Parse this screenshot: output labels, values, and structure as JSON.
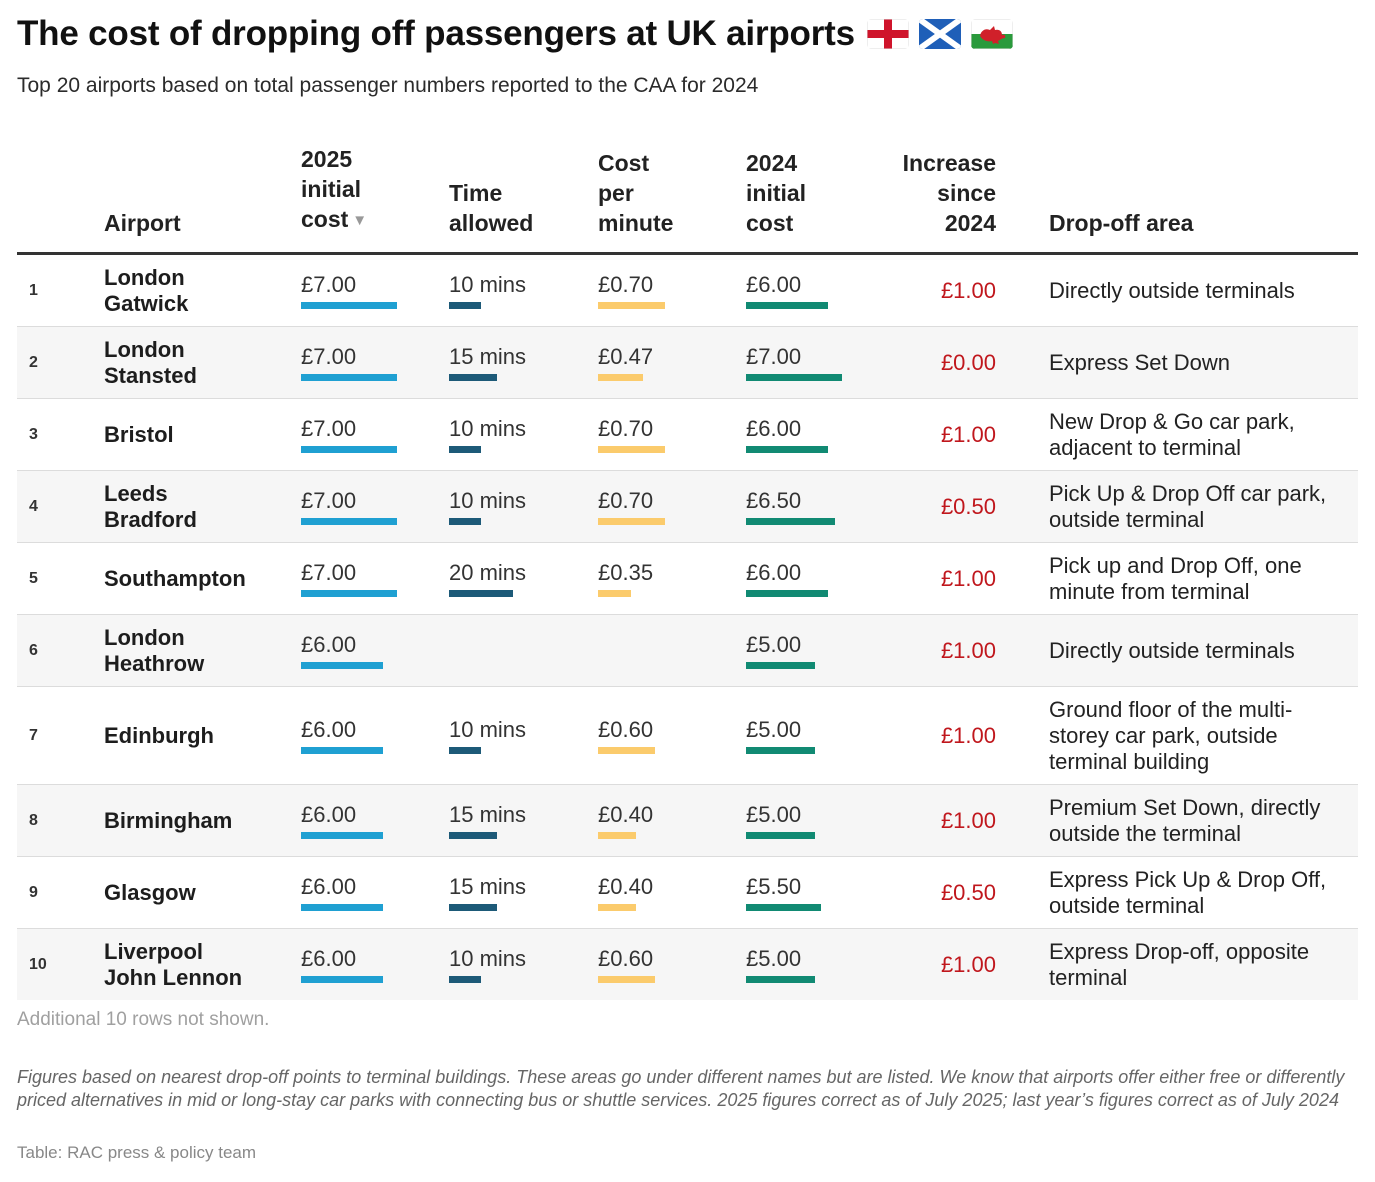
{
  "title": "The cost of dropping off passengers at UK airports",
  "flags": [
    "england-flag",
    "scotland-flag",
    "wales-flag"
  ],
  "subtitle": "Top 20 airports based on total passenger numbers reported to the CAA for 2024",
  "headers": {
    "airport": "Airport",
    "cost_2025": [
      "2025",
      "initial",
      "cost"
    ],
    "time": [
      "Time",
      "allowed"
    ],
    "cpm": [
      "Cost",
      "per",
      "minute"
    ],
    "cost_2024": [
      "2024",
      "initial",
      "cost"
    ],
    "increase": [
      "Increase",
      "since",
      "2024"
    ],
    "dropoff": "Drop-off area"
  },
  "colors": {
    "cost_2025_bar": "#1fa0d2",
    "time_bar": "#1d5a78",
    "cpm_bar": "#fbcb6c",
    "cost_2024_bar": "#118a73",
    "increase_text": "#c0171d"
  },
  "chart_data": {
    "type": "table",
    "columns": [
      "Airport",
      "2025 initial cost",
      "Time allowed",
      "Cost per minute",
      "2024 initial cost",
      "Increase since 2024",
      "Drop-off area"
    ],
    "rows": [
      {
        "rank": "1",
        "airport": [
          "London",
          "Gatwick"
        ],
        "cost_2025": "£7.00",
        "cost_2025_v": 7.0,
        "time": "10 mins",
        "time_v": 10,
        "cpm": "£0.70",
        "cpm_v": 0.7,
        "cost_2024": "£6.00",
        "cost_2024_v": 6.0,
        "increase": "£1.00",
        "dropoff": [
          "Directly outside terminals"
        ]
      },
      {
        "rank": "2",
        "airport": [
          "London",
          "Stansted"
        ],
        "cost_2025": "£7.00",
        "cost_2025_v": 7.0,
        "time": "15 mins",
        "time_v": 15,
        "cpm": "£0.47",
        "cpm_v": 0.47,
        "cost_2024": "£7.00",
        "cost_2024_v": 7.0,
        "increase": "£0.00",
        "dropoff": [
          "Express Set Down"
        ]
      },
      {
        "rank": "3",
        "airport": [
          "Bristol"
        ],
        "cost_2025": "£7.00",
        "cost_2025_v": 7.0,
        "time": "10 mins",
        "time_v": 10,
        "cpm": "£0.70",
        "cpm_v": 0.7,
        "cost_2024": "£6.00",
        "cost_2024_v": 6.0,
        "increase": "£1.00",
        "dropoff": [
          "New Drop & Go car park,",
          "adjacent to terminal"
        ]
      },
      {
        "rank": "4",
        "airport": [
          "Leeds",
          "Bradford"
        ],
        "cost_2025": "£7.00",
        "cost_2025_v": 7.0,
        "time": "10 mins",
        "time_v": 10,
        "cpm": "£0.70",
        "cpm_v": 0.7,
        "cost_2024": "£6.50",
        "cost_2024_v": 6.5,
        "increase": "£0.50",
        "dropoff": [
          "Pick Up & Drop Off car park,",
          "outside terminal"
        ]
      },
      {
        "rank": "5",
        "airport": [
          "Southampton"
        ],
        "cost_2025": "£7.00",
        "cost_2025_v": 7.0,
        "time": "20 mins",
        "time_v": 20,
        "cpm": "£0.35",
        "cpm_v": 0.35,
        "cost_2024": "£6.00",
        "cost_2024_v": 6.0,
        "increase": "£1.00",
        "dropoff": [
          "Pick up and Drop Off, one",
          "minute from terminal"
        ]
      },
      {
        "rank": "6",
        "airport": [
          "London",
          "Heathrow"
        ],
        "cost_2025": "£6.00",
        "cost_2025_v": 6.0,
        "time": "",
        "time_v": null,
        "cpm": "",
        "cpm_v": null,
        "cost_2024": "£5.00",
        "cost_2024_v": 5.0,
        "increase": "£1.00",
        "dropoff": [
          "Directly outside terminals"
        ]
      },
      {
        "rank": "7",
        "airport": [
          "Edinburgh"
        ],
        "cost_2025": "£6.00",
        "cost_2025_v": 6.0,
        "time": "10 mins",
        "time_v": 10,
        "cpm": "£0.60",
        "cpm_v": 0.6,
        "cost_2024": "£5.00",
        "cost_2024_v": 5.0,
        "increase": "£1.00",
        "dropoff": [
          "Ground floor of the multi-",
          "storey car park, outside",
          "terminal building"
        ]
      },
      {
        "rank": "8",
        "airport": [
          "Birmingham"
        ],
        "cost_2025": "£6.00",
        "cost_2025_v": 6.0,
        "time": "15 mins",
        "time_v": 15,
        "cpm": "£0.40",
        "cpm_v": 0.4,
        "cost_2024": "£5.00",
        "cost_2024_v": 5.0,
        "increase": "£1.00",
        "dropoff": [
          "Premium Set Down, directly",
          "outside the terminal"
        ]
      },
      {
        "rank": "9",
        "airport": [
          "Glasgow"
        ],
        "cost_2025": "£6.00",
        "cost_2025_v": 6.0,
        "time": "15 mins",
        "time_v": 15,
        "cpm": "£0.40",
        "cpm_v": 0.4,
        "cost_2024": "£5.50",
        "cost_2024_v": 5.5,
        "increase": "£0.50",
        "dropoff": [
          "Express Pick Up & Drop Off,",
          "outside terminal"
        ]
      },
      {
        "rank": "10",
        "airport": [
          "Liverpool",
          "John Lennon"
        ],
        "cost_2025": "£6.00",
        "cost_2025_v": 6.0,
        "time": "10 mins",
        "time_v": 10,
        "cpm": "£0.60",
        "cpm_v": 0.6,
        "cost_2024": "£5.00",
        "cost_2024_v": 5.0,
        "increase": "£1.00",
        "dropoff": [
          "Express Drop-off, opposite",
          "terminal"
        ]
      }
    ]
  },
  "more_rows_note": "Additional 10 rows not shown.",
  "footnote": "Figures based on nearest drop-off points to terminal buildings. These areas go under different names but are listed. We know that airports offer either free or differently priced alternatives in mid or long-stay car parks with connecting bus or shuttle services. 2025 figures correct as of July 2025; last year’s figures correct as of July 2024",
  "source": "Table: RAC press & policy team"
}
